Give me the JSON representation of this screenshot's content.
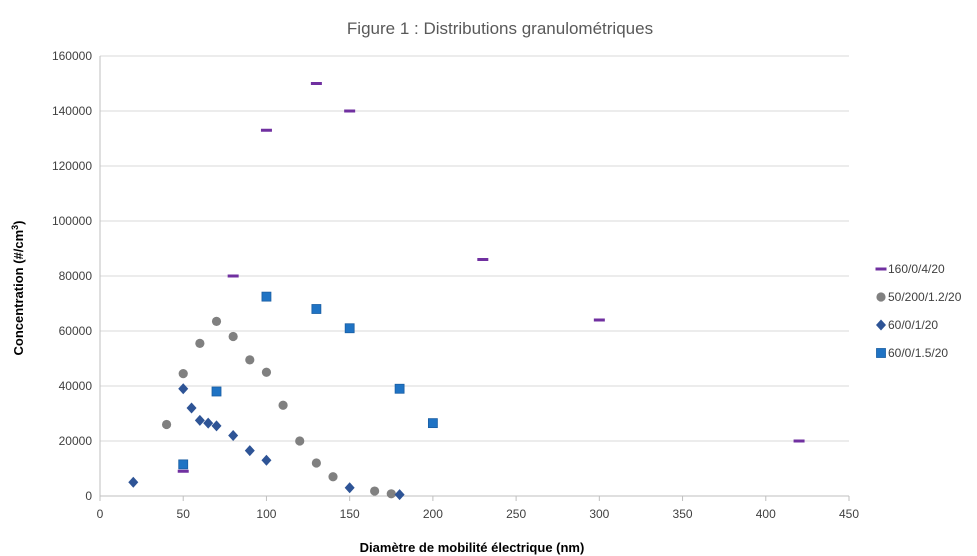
{
  "chart_data": {
    "type": "scatter",
    "title": "Figure 1 : Distributions granulométriques",
    "xlabel": "Diamètre de mobilité électrique (nm)",
    "ylabel_main": "Concentration (#/cm",
    "ylabel_sup": "3",
    "ylabel_end": ")",
    "xlim": [
      0,
      450
    ],
    "ylim": [
      0,
      160000
    ],
    "x_ticks": [
      0,
      50,
      100,
      150,
      200,
      250,
      300,
      350,
      400,
      450
    ],
    "y_ticks": [
      0,
      20000,
      40000,
      60000,
      80000,
      100000,
      120000,
      140000,
      160000
    ],
    "grid": true,
    "legend_position": "right",
    "series": [
      {
        "name": "160/0/4/20",
        "marker": "dash",
        "color": "#7030a0",
        "points": [
          [
            50,
            9000
          ],
          [
            80,
            80000
          ],
          [
            100,
            133000
          ],
          [
            130,
            150000
          ],
          [
            150,
            140000
          ],
          [
            230,
            86000
          ],
          [
            300,
            64000
          ],
          [
            420,
            20000
          ]
        ]
      },
      {
        "name": "50/200/1.2/20",
        "marker": "circle",
        "color": "#808080",
        "points": [
          [
            40,
            26000
          ],
          [
            50,
            44500
          ],
          [
            60,
            55500
          ],
          [
            70,
            63500
          ],
          [
            80,
            58000
          ],
          [
            90,
            49500
          ],
          [
            100,
            45000
          ],
          [
            110,
            33000
          ],
          [
            120,
            20000
          ],
          [
            130,
            12000
          ],
          [
            140,
            7000
          ],
          [
            165,
            1800
          ],
          [
            175,
            800
          ]
        ]
      },
      {
        "name": "60/0/1/20",
        "marker": "diamond",
        "color": "#2e5496",
        "points": [
          [
            20,
            5000
          ],
          [
            50,
            39000
          ],
          [
            55,
            32000
          ],
          [
            60,
            27500
          ],
          [
            65,
            26500
          ],
          [
            70,
            25500
          ],
          [
            80,
            22000
          ],
          [
            90,
            16500
          ],
          [
            100,
            13000
          ],
          [
            150,
            3000
          ],
          [
            180,
            500
          ]
        ]
      },
      {
        "name": "60/0/1.5/20",
        "marker": "square",
        "color": "#1f73c4",
        "points": [
          [
            50,
            11500
          ],
          [
            70,
            38000
          ],
          [
            100,
            72500
          ],
          [
            130,
            68000
          ],
          [
            150,
            61000
          ],
          [
            180,
            39000
          ],
          [
            200,
            26500
          ]
        ]
      }
    ]
  }
}
